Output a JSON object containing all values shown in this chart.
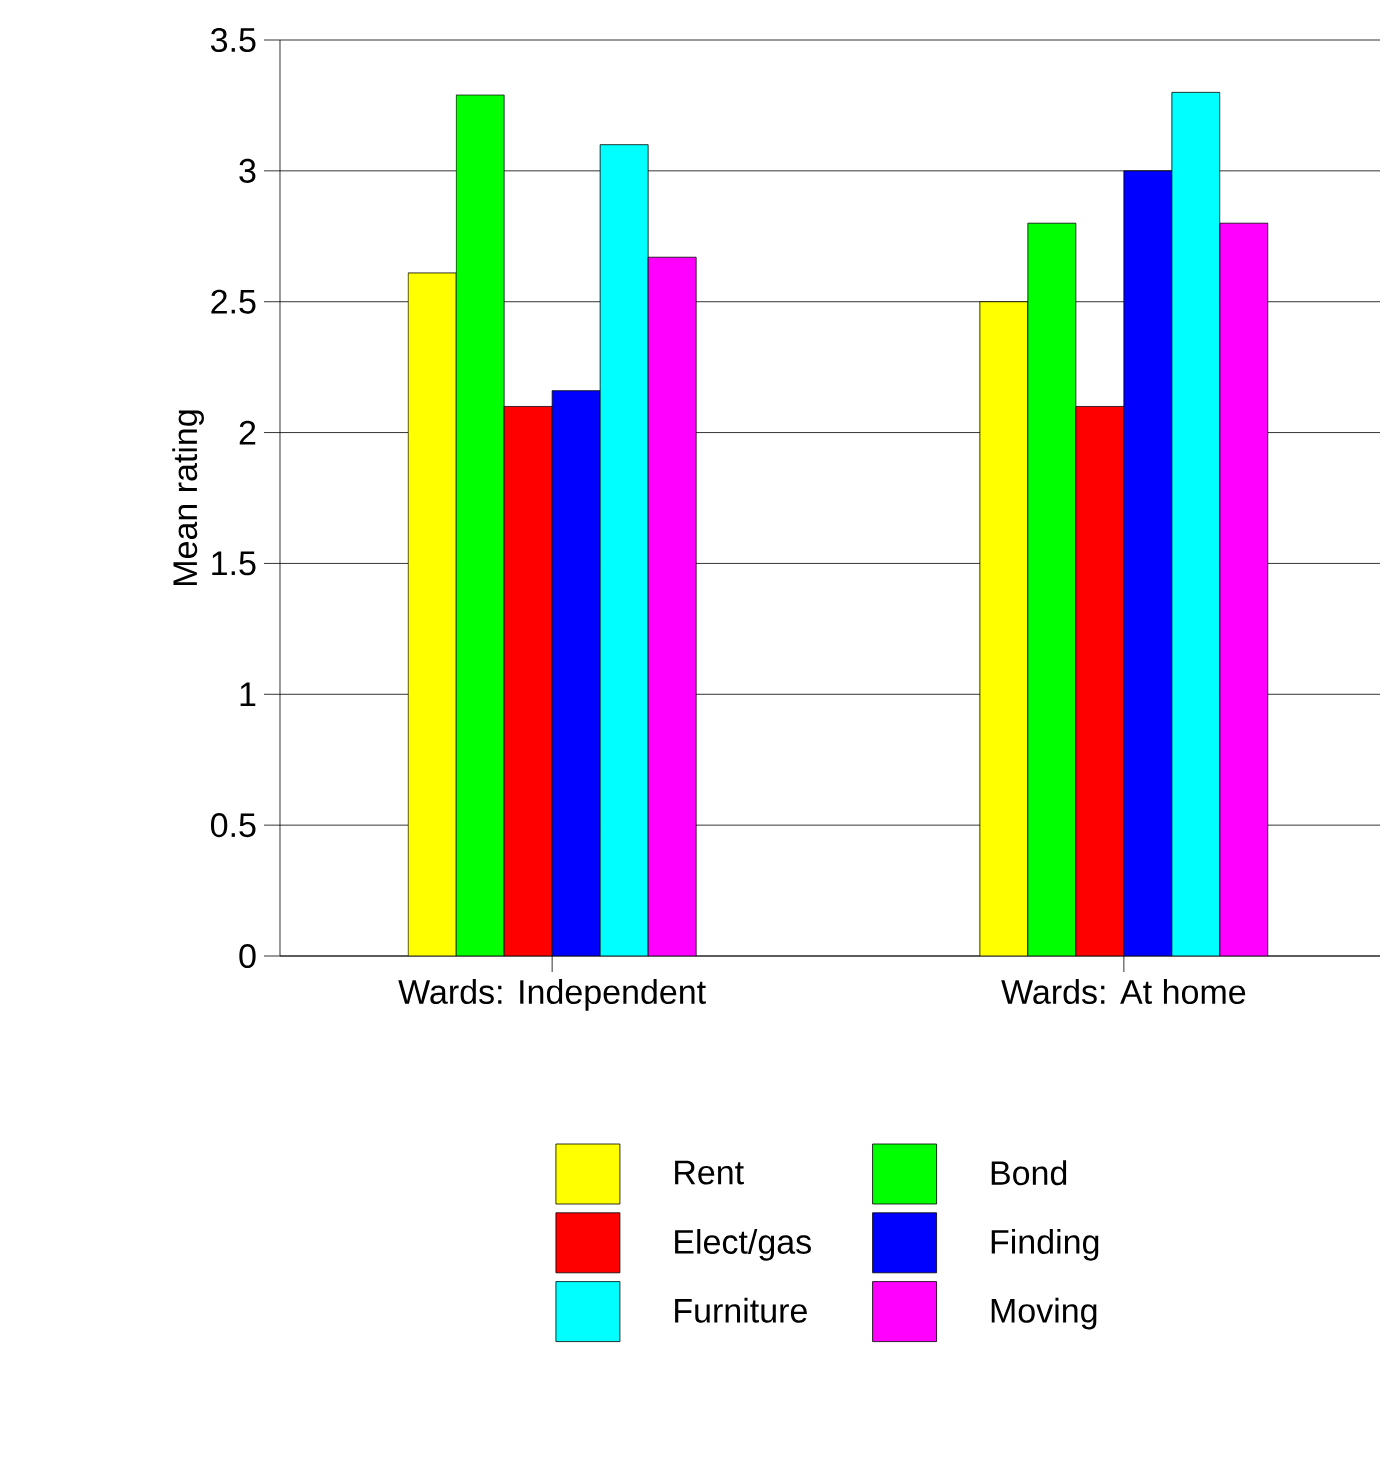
{
  "chart_data": {
    "type": "bar",
    "ylabel": "Mean rating",
    "categories": [
      "Wards: Independent",
      "Wards: At home"
    ],
    "series": [
      {
        "name": "Rent",
        "color": "#ffff00",
        "values": [
          2.61,
          2.5
        ]
      },
      {
        "name": "Bond",
        "color": "#00ff00",
        "values": [
          3.29,
          2.8
        ]
      },
      {
        "name": "Elect/gas",
        "color": "#ff0000",
        "values": [
          2.1,
          2.1
        ]
      },
      {
        "name": "Finding",
        "color": "#0000ff",
        "values": [
          2.16,
          3.0
        ]
      },
      {
        "name": "Furniture",
        "color": "#00ffff",
        "values": [
          3.1,
          3.3
        ]
      },
      {
        "name": "Moving",
        "color": "#ff00ff",
        "values": [
          2.67,
          2.8
        ]
      }
    ],
    "ylim": [
      0,
      3.5
    ],
    "yticks": [
      0,
      0.5,
      1,
      1.5,
      2,
      2.5,
      3,
      3.5
    ],
    "grid": "y",
    "legend": "bottom"
  }
}
